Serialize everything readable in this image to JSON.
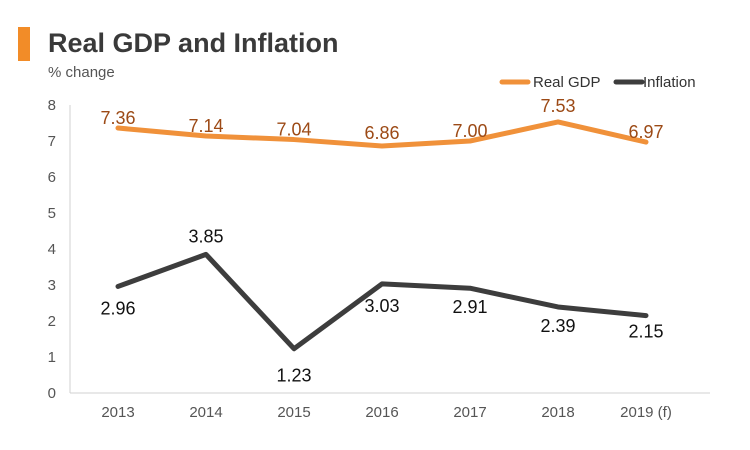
{
  "header": {
    "title": "Real GDP and Inflation",
    "subtitle": "% change"
  },
  "colors": {
    "accent": "#F28C28",
    "gdp_line": "#F0913A",
    "gdp_label": "#9C4A16",
    "inflation_line": "#3D3D3D",
    "inflation_label": "#111111"
  },
  "chart_data": {
    "type": "line",
    "title": "Real GDP and Inflation",
    "subtitle": "% change",
    "categories": [
      "2013",
      "2014",
      "2015",
      "2016",
      "2017",
      "2018",
      "2019 (f)"
    ],
    "ylim": [
      0,
      8
    ],
    "yticks": [
      0,
      1,
      2,
      3,
      4,
      5,
      6,
      7,
      8
    ],
    "grid": false,
    "legend_position": "top-right",
    "series": [
      {
        "name": "Real GDP",
        "values": [
          7.36,
          7.14,
          7.04,
          6.86,
          7.0,
          7.53,
          6.97
        ],
        "labels": [
          "7.36",
          "7.14",
          "7.04",
          "6.86",
          "7.00",
          "7.53",
          "6.97"
        ]
      },
      {
        "name": "Inflation",
        "values": [
          2.96,
          3.85,
          1.23,
          3.03,
          2.91,
          2.39,
          2.15
        ],
        "labels": [
          "2.96",
          "3.85",
          "1.23",
          "3.03",
          "2.91",
          "2.39",
          "2.15"
        ]
      }
    ]
  }
}
